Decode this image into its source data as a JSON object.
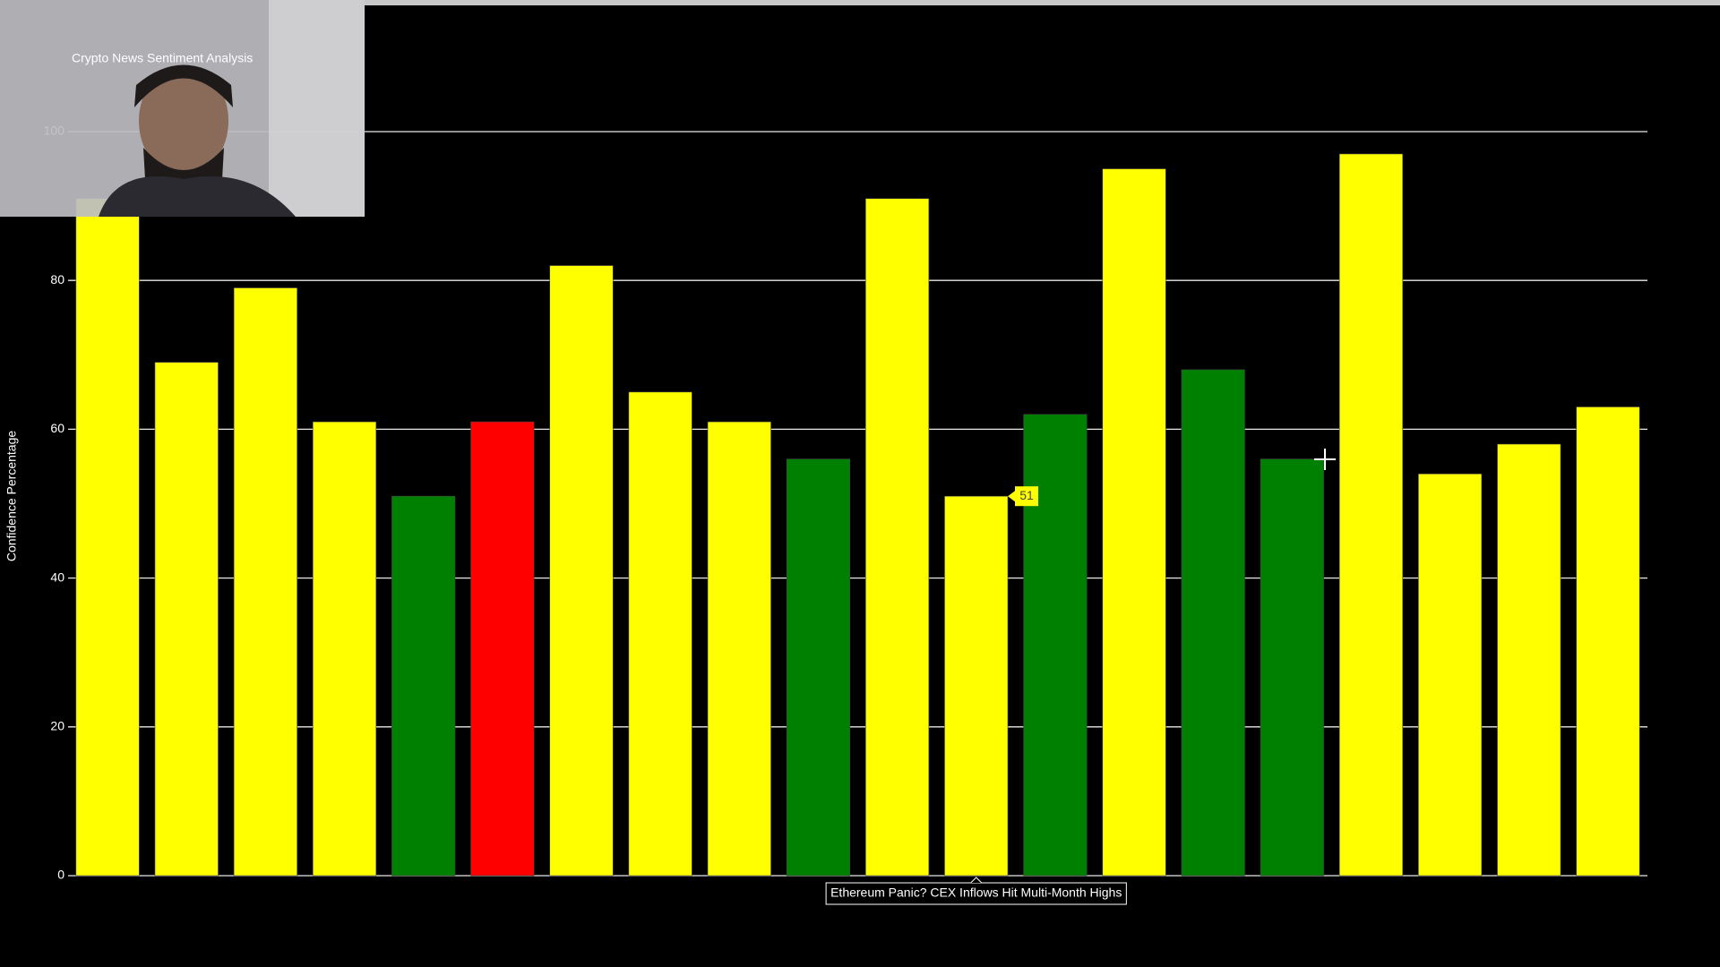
{
  "chart_data": {
    "type": "bar",
    "title": "Crypto News Sentiment Analysis",
    "y_label": "Confidence Percentage",
    "categories": [
      null,
      null,
      null,
      null,
      null,
      null,
      null,
      null,
      null,
      null,
      null,
      "Ethereum Panic? CEX Inflows Hit Multi-Month Highs",
      null,
      null,
      null,
      null,
      null,
      null,
      null,
      null
    ],
    "values": [
      91,
      69,
      79,
      61,
      51,
      61,
      82,
      65,
      61,
      56,
      91,
      51,
      62,
      95,
      68,
      56,
      97,
      54,
      58,
      63
    ],
    "colors": [
      "#ffff00",
      "#ffff00",
      "#ffff00",
      "#ffff00",
      "#008000",
      "#ff0000",
      "#ffff00",
      "#ffff00",
      "#ffff00",
      "#008000",
      "#ffff00",
      "#ffff00",
      "#008000",
      "#ffff00",
      "#008000",
      "#008000",
      "#ffff00",
      "#ffff00",
      "#ffff00",
      "#ffff00"
    ],
    "ylim": [
      0,
      100
    ],
    "yticks": [
      0,
      20,
      40,
      60,
      80,
      100
    ],
    "grid": true
  }
}
